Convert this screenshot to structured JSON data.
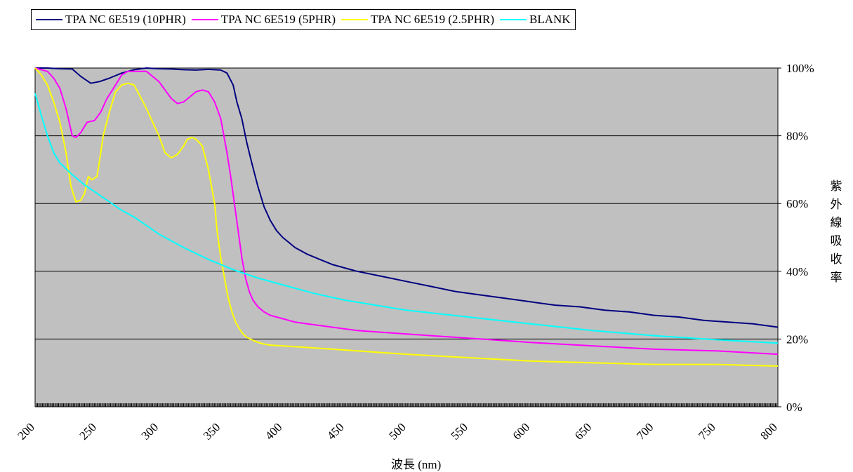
{
  "chart_data": {
    "type": "line",
    "title": "",
    "xlabel": "波長 (nm)",
    "ylabel": "紫外線吸收率",
    "xlim": [
      200,
      800
    ],
    "ylim": [
      0,
      100
    ],
    "x_ticks": [
      "200",
      "250",
      "300",
      "350",
      "400",
      "450",
      "500",
      "550",
      "600",
      "650",
      "700",
      "750",
      "800"
    ],
    "y_ticks": [
      "0%",
      "20%",
      "40%",
      "60%",
      "80%",
      "100%"
    ],
    "grid": "horizontal",
    "legend_position": "top",
    "plot_background": "#C0C0C0",
    "series": [
      {
        "name": "TPA NC 6E519 (10PHR)",
        "color": "#000080",
        "x": [
          200,
          210,
          220,
          230,
          237,
          245,
          252,
          260,
          270,
          280,
          290,
          300,
          310,
          320,
          330,
          340,
          350,
          355,
          360,
          363,
          367,
          371,
          375,
          380,
          385,
          390,
          395,
          400,
          410,
          420,
          430,
          440,
          450,
          460,
          480,
          500,
          520,
          540,
          560,
          580,
          600,
          620,
          640,
          660,
          680,
          700,
          720,
          740,
          760,
          780,
          800
        ],
        "y": [
          100,
          100,
          99.8,
          99.7,
          97.5,
          95.5,
          96,
          97,
          98.5,
          99.5,
          100,
          99.8,
          99.7,
          99.5,
          99.4,
          99.6,
          99.4,
          98.5,
          95,
          90,
          85,
          78,
          72,
          65,
          59,
          55,
          52,
          50,
          47,
          45,
          43.5,
          42,
          41,
          40,
          38.5,
          37,
          35.5,
          34,
          33,
          32,
          31,
          30,
          29.5,
          28.5,
          28,
          27,
          26.5,
          25.5,
          25,
          24.5,
          23.5
        ]
      },
      {
        "name": "TPA NC 6E519 (5PHR)",
        "color": "#FF00FF",
        "x": [
          200,
          205,
          210,
          215,
          220,
          225,
          230,
          233,
          237,
          242,
          248,
          253,
          258,
          265,
          270,
          275,
          280,
          290,
          300,
          310,
          315,
          320,
          325,
          330,
          335,
          340,
          345,
          350,
          355,
          358,
          361,
          364,
          367,
          370,
          373,
          376,
          380,
          385,
          390,
          400,
          410,
          420,
          440,
          460,
          480,
          500,
          520,
          540,
          560,
          580,
          600,
          650,
          700,
          750,
          800
        ],
        "y": [
          100,
          99.5,
          99,
          97,
          94,
          88,
          80,
          79.5,
          81,
          84,
          84.5,
          87,
          91,
          95,
          98,
          99,
          99,
          99,
          96,
          91,
          89.5,
          90,
          91.5,
          93,
          93.5,
          93,
          90,
          85,
          75,
          68,
          60,
          52,
          44,
          38,
          34,
          31.5,
          29.5,
          28,
          27,
          26,
          25,
          24.5,
          23.5,
          22.5,
          22,
          21.5,
          21,
          20.5,
          20,
          19.5,
          19,
          18,
          17,
          16.5,
          15.5
        ]
      },
      {
        "name": "TPA NC 6E519 (2.5PHR)",
        "color": "#FFFF00",
        "x": [
          200,
          205,
          210,
          215,
          220,
          225,
          229,
          233,
          237,
          240,
          243,
          246,
          250,
          253,
          255,
          260,
          265,
          270,
          275,
          280,
          290,
          300,
          305,
          310,
          315,
          320,
          323,
          327,
          330,
          335,
          340,
          345,
          347,
          350,
          353,
          356,
          359,
          362,
          365,
          368,
          371,
          374,
          377,
          380,
          385,
          390,
          400,
          420,
          440,
          460,
          480,
          500,
          550,
          600,
          650,
          700,
          750,
          800
        ],
        "y": [
          100,
          98,
          95,
          90,
          84,
          75,
          65,
          60.5,
          61,
          63,
          68,
          67,
          68,
          75,
          80,
          87,
          93,
          95,
          95.5,
          95,
          88,
          80,
          75,
          73.5,
          74.5,
          77,
          79,
          79.5,
          79,
          77,
          70,
          60,
          52,
          44,
          38,
          32,
          28,
          25,
          23,
          21.5,
          20.5,
          20,
          19.5,
          19,
          18.5,
          18.2,
          18,
          17.5,
          17,
          16.5,
          16,
          15.5,
          14.5,
          13.5,
          13,
          12.5,
          12.5,
          12
        ]
      },
      {
        "name": "BLANK",
        "color": "#00FFFF",
        "x": [
          200,
          205,
          210,
          215,
          220,
          230,
          240,
          250,
          260,
          270,
          280,
          290,
          300,
          320,
          340,
          360,
          380,
          400,
          425,
          450,
          475,
          500,
          550,
          600,
          650,
          700,
          750,
          800
        ],
        "y": [
          92.5,
          86,
          80,
          75,
          72,
          68.5,
          65.5,
          63,
          60.5,
          58,
          56,
          53.5,
          51,
          47,
          43.5,
          40.5,
          38,
          36,
          33.5,
          31.5,
          30,
          28.5,
          26.5,
          24.5,
          22.5,
          21,
          19.8,
          18.8
        ]
      }
    ]
  }
}
